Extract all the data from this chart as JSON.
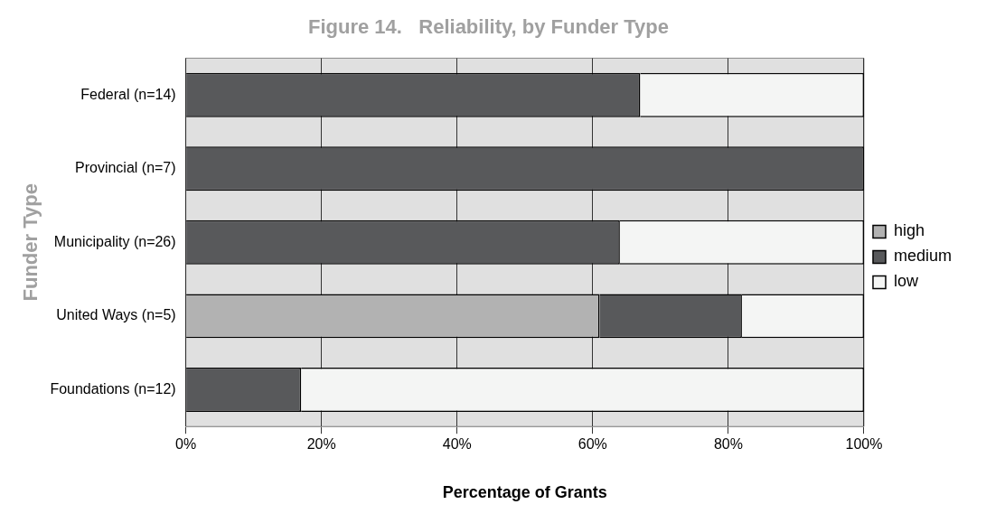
{
  "chart_data": {
    "type": "bar",
    "orientation": "horizontal",
    "stacked": true,
    "title": "Figure 14.   Reliability, by Funder Type",
    "xlabel": "Percentage of Grants",
    "ylabel": "Funder Type",
    "categories": [
      "Federal (n=14)",
      "Provincial (n=7)",
      "Municipality (n=26)",
      "United Ways (n=5)",
      "Foundations (n=12)"
    ],
    "series": [
      {
        "name": "high",
        "color": "#b2b2b2",
        "values": [
          0,
          0,
          0,
          61,
          0
        ]
      },
      {
        "name": "medium",
        "color": "#58595b",
        "values": [
          67,
          100,
          64,
          21,
          17
        ]
      },
      {
        "name": "low",
        "color": "#f4f5f4",
        "values": [
          33,
          0,
          36,
          18,
          83
        ]
      }
    ],
    "xlim": [
      0,
      100
    ],
    "xticks": [
      {
        "value": 0,
        "label": "0%"
      },
      {
        "value": 20,
        "label": "20%"
      },
      {
        "value": 40,
        "label": "40%"
      },
      {
        "value": 60,
        "label": "60%"
      },
      {
        "value": 80,
        "label": "80%"
      },
      {
        "value": 100,
        "label": "100%"
      }
    ],
    "grid": "x",
    "legend": "right"
  }
}
